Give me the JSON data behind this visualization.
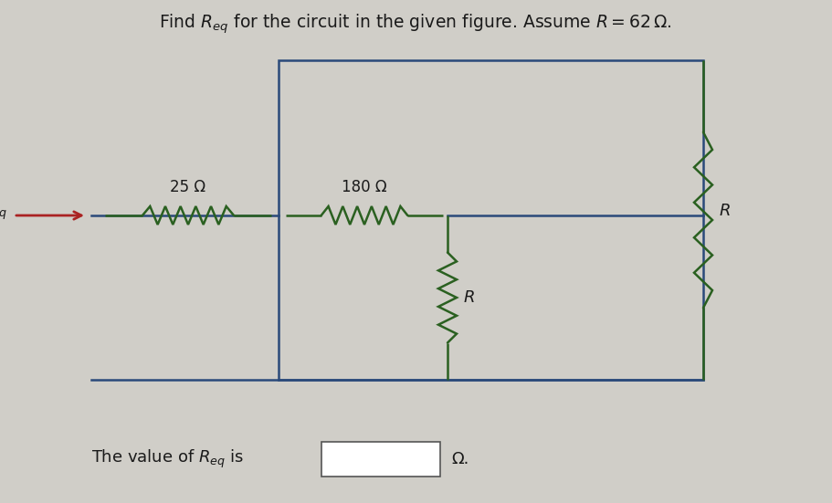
{
  "title_parts": [
    "Find ",
    "R",
    "eq",
    " for the circuit in the given figure. Assume ",
    "R",
    " = 62 Ω."
  ],
  "bg_color": "#d0cec8",
  "line_color": "#2a4a7a",
  "resistor_color_h": "#2a6020",
  "resistor_color_v": "#2a6020",
  "text_color": "#1a1a1a",
  "arrow_color": "#aa2222",
  "R25_label": "25 Ω",
  "R180_label": "180 Ω",
  "R_label": "R",
  "figsize": [
    9.11,
    5.51
  ],
  "dpi": 100
}
